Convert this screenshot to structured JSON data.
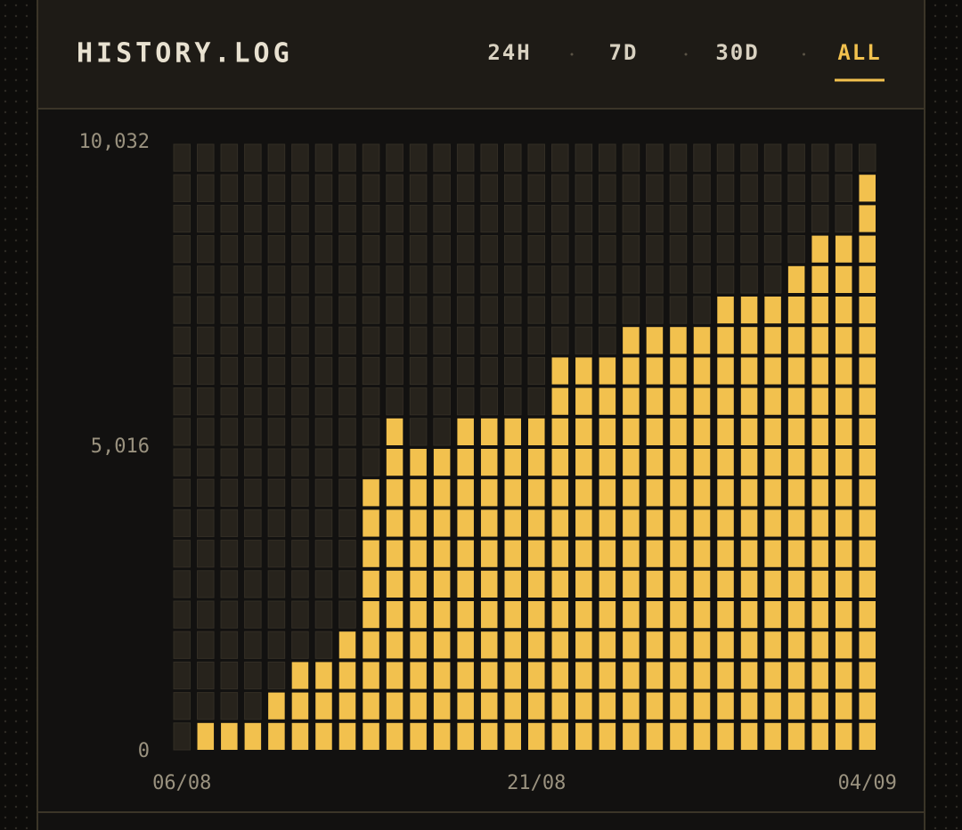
{
  "header": {
    "title": "HISTORY.LOG",
    "tabs": [
      "24H",
      "7D",
      "30D",
      "ALL"
    ],
    "active_tab": 3
  },
  "chart_data": {
    "type": "cell-bar",
    "categories": [
      "06/08",
      null,
      null,
      null,
      null,
      null,
      null,
      null,
      null,
      null,
      null,
      null,
      null,
      null,
      null,
      "21/08",
      null,
      null,
      null,
      null,
      null,
      null,
      null,
      null,
      null,
      null,
      null,
      null,
      null,
      "04/09"
    ],
    "values": [
      0,
      502,
      502,
      502,
      1003,
      1505,
      1505,
      2006,
      4514,
      5518,
      5016,
      5016,
      5518,
      5518,
      5518,
      5518,
      6521,
      6521,
      6521,
      7022,
      7022,
      7022,
      7022,
      7524,
      7524,
      7524,
      8026,
      8527,
      8527,
      9530
    ],
    "ylim": [
      0,
      10032
    ],
    "yticks": [
      0,
      {
        "value": 5016,
        "label": "5,016"
      },
      {
        "value": 10032,
        "label": "10,032"
      }
    ],
    "cells": 20,
    "color": "#f2c14e",
    "empty_color": "#27231c"
  }
}
